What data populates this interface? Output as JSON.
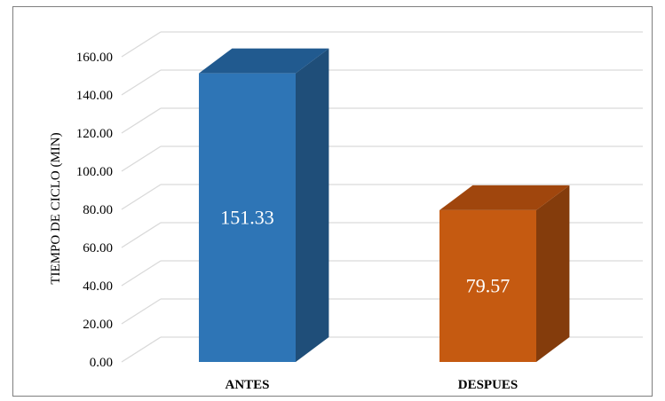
{
  "chart_data": {
    "type": "bar",
    "style": "3d-column",
    "categories": [
      "ANTES",
      "DESPUES"
    ],
    "values": [
      151.33,
      79.57
    ],
    "data_labels": [
      "151.33",
      "79.57"
    ],
    "title": "",
    "xlabel": "",
    "ylabel": "TIEMPO DE CICLO (MIN)",
    "ylim": [
      0,
      160
    ],
    "yticks": [
      0,
      20,
      40,
      60,
      80,
      100,
      120,
      140,
      160
    ],
    "ytick_labels": [
      "0.00",
      "20.00",
      "40.00",
      "60.00",
      "80.00",
      "100.00",
      "120.00",
      "140.00",
      "160.00"
    ],
    "grid": true,
    "legend": "none",
    "colors": {
      "ANTES": {
        "front": "#2e75b6",
        "side": "#1f4e79",
        "top": "#215a8f"
      },
      "DESPUES": {
        "front": "#c55a11",
        "side": "#843c0c",
        "top": "#a0460d"
      },
      "grid": "#d9d9d9",
      "frame": "#7f7f7f"
    }
  }
}
